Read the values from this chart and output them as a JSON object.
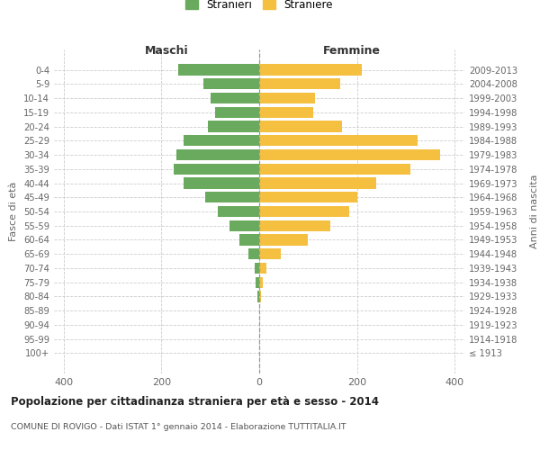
{
  "age_groups": [
    "0-4",
    "5-9",
    "10-14",
    "15-19",
    "20-24",
    "25-29",
    "30-34",
    "35-39",
    "40-44",
    "45-49",
    "50-54",
    "55-59",
    "60-64",
    "65-69",
    "70-74",
    "75-79",
    "80-84",
    "85-89",
    "90-94",
    "95-99",
    "100+"
  ],
  "birth_years": [
    "2009-2013",
    "2004-2008",
    "1999-2003",
    "1994-1998",
    "1989-1993",
    "1984-1988",
    "1979-1983",
    "1974-1978",
    "1969-1973",
    "1964-1968",
    "1959-1963",
    "1954-1958",
    "1949-1953",
    "1944-1948",
    "1939-1943",
    "1934-1938",
    "1929-1933",
    "1924-1928",
    "1919-1923",
    "1914-1918",
    "≤ 1913"
  ],
  "maschi": [
    165,
    115,
    100,
    90,
    105,
    155,
    170,
    175,
    155,
    110,
    85,
    60,
    40,
    22,
    10,
    7,
    3,
    0,
    0,
    0,
    0
  ],
  "femmine": [
    210,
    165,
    115,
    110,
    170,
    325,
    370,
    310,
    240,
    200,
    185,
    145,
    100,
    45,
    15,
    8,
    3,
    0,
    0,
    0,
    0
  ],
  "maschi_color": "#6aaa5e",
  "femmine_color": "#f5c040",
  "title": "Popolazione per cittadinanza straniera per età e sesso - 2014",
  "subtitle": "COMUNE DI ROVIGO - Dati ISTAT 1° gennaio 2014 - Elaborazione TUTTITALIA.IT",
  "ylabel_left": "Fasce di età",
  "ylabel_right": "Anni di nascita",
  "xlabel_left": "Maschi",
  "xlabel_right": "Femmine",
  "legend_stranieri": "Stranieri",
  "legend_straniere": "Straniere",
  "xlim": 420,
  "background_color": "#ffffff",
  "grid_color": "#cccccc"
}
